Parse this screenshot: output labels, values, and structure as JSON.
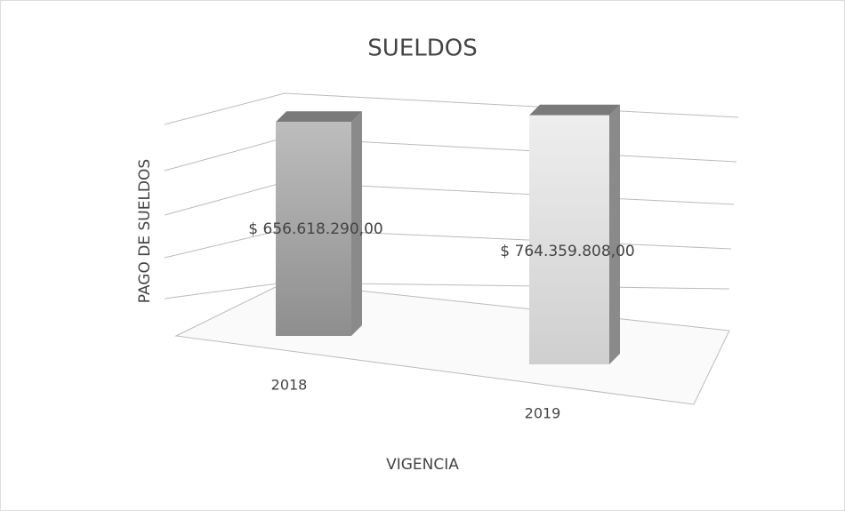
{
  "chart_data": {
    "type": "bar3d",
    "title": "SUELDOS",
    "x_label": "VIGENCIA",
    "y_label": "PAGO DE SUELDOS",
    "categories": [
      "2018",
      "2019"
    ],
    "values": [
      656618290,
      764359808
    ],
    "value_labels": [
      "$ 656.618.290,00",
      "$ 764.359.808,00"
    ],
    "colors": [
      "#a9a9a9",
      "#dcdcdc"
    ],
    "ylim": [
      0,
      900000000
    ]
  }
}
